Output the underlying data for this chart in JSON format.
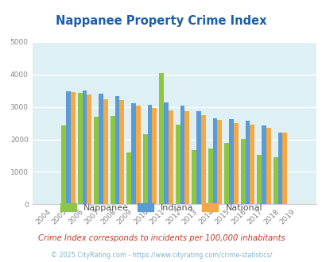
{
  "title": "Nappanee Property Crime Index",
  "title_color": "#1a5fa8",
  "years": [
    "2004",
    "2005",
    "2006",
    "2007",
    "2008",
    "2009",
    "2010",
    "2011",
    "2012",
    "2013",
    "2014",
    "2015",
    "2016",
    "2017",
    "2018",
    "2019"
  ],
  "nappanee": [
    0,
    2420,
    3420,
    2700,
    2720,
    1600,
    2150,
    4050,
    2450,
    1670,
    1720,
    1880,
    2020,
    1520,
    1440,
    0
  ],
  "indiana": [
    0,
    3480,
    3500,
    3400,
    3340,
    3120,
    3070,
    3150,
    3040,
    2870,
    2640,
    2620,
    2580,
    2420,
    2200,
    0
  ],
  "national": [
    0,
    3460,
    3370,
    3240,
    3200,
    3040,
    2960,
    2900,
    2860,
    2740,
    2600,
    2500,
    2460,
    2360,
    2200,
    0
  ],
  "nappanee_color": "#8dc63f",
  "indiana_color": "#5b9bd5",
  "national_color": "#f4a942",
  "bg_color": "#dff0f5",
  "ylim": [
    0,
    5000
  ],
  "yticks": [
    0,
    1000,
    2000,
    3000,
    4000,
    5000
  ],
  "subtitle": "Crime Index corresponds to incidents per 100,000 inhabitants",
  "footer": "© 2025 CityRating.com - https://www.cityrating.com/crime-statistics/",
  "subtitle_color": "#c0392b",
  "footer_color": "#7fb3cc"
}
